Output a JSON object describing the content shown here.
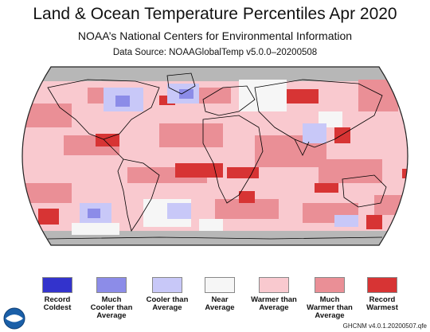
{
  "header": {
    "title": "Land & Ocean Temperature Percentiles Apr 2020",
    "subtitle": "NOAA’s National Centers for Environmental Information",
    "source": "Data Source: NOAAGlobalTemp v5.0.0–20200508"
  },
  "colors": {
    "record_coldest": "#3333cc",
    "much_cooler": "#8c8ce8",
    "cooler": "#c8c8f8",
    "near_average": "#f6f6f6",
    "warmer": "#f9c9cf",
    "much_warmer": "#ea8f96",
    "record_warmest": "#d73434",
    "no_data": "#b7b7b7",
    "land_outline": "#000000"
  },
  "legend": [
    {
      "label_lines": [
        "Record",
        "Coldest"
      ],
      "color": "#3333cc"
    },
    {
      "label_lines": [
        "Much",
        "Cooler than",
        "Average"
      ],
      "color": "#8c8ce8"
    },
    {
      "label_lines": [
        "Cooler than",
        "Average"
      ],
      "color": "#c8c8f8"
    },
    {
      "label_lines": [
        "Near",
        "Average"
      ],
      "color": "#f6f6f6"
    },
    {
      "label_lines": [
        "Warmer than",
        "Average"
      ],
      "color": "#f9c9cf"
    },
    {
      "label_lines": [
        "Much",
        "Warmer than",
        "Average"
      ],
      "color": "#ea8f96"
    },
    {
      "label_lines": [
        "Record",
        "Warmest"
      ],
      "color": "#d73434"
    }
  ],
  "footer": {
    "logo_icon": "noaa-logo",
    "version": "GHCNM v4.0.1.20200507.qfe"
  }
}
